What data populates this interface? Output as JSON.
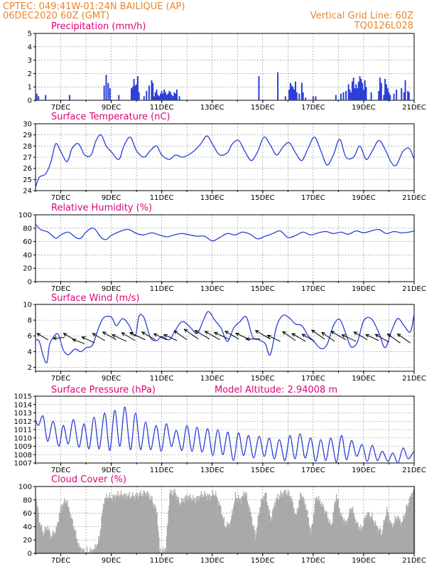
{
  "header": {
    "line1": "CPTEC:   049:41W-01:24N   BAILIQUE (AP)",
    "line2": "06DEC2020 60Z (GMT)",
    "grid_note": "Vertical Grid Line: 60Z",
    "code": "TQ0126L028",
    "model_altitude": "Model Altitude: 2.94008 m"
  },
  "colors": {
    "header": "#e8862a",
    "title": "#e0007a",
    "line": "#2a3fd6",
    "cloud": "#a9a9a9",
    "wind_arrow": "#000000"
  },
  "chart_data": [
    {
      "id": "precip",
      "type": "bar",
      "title": "Precipitation (mm/h)",
      "x_range": [
        6.0,
        21.0
      ],
      "ylim": [
        0,
        5
      ],
      "y_ticks": [
        0,
        1,
        2,
        3,
        4,
        5
      ],
      "x_tick_labels": [
        "7DEC",
        "9DEC",
        "11DEC",
        "13DEC",
        "15DEC",
        "17DEC",
        "19DEC",
        "21DEC"
      ],
      "x": [
        6.05,
        6.12,
        6.4,
        7.35,
        8.72,
        8.8,
        8.88,
        8.95,
        9.3,
        9.8,
        9.85,
        9.9,
        9.95,
        10.0,
        10.05,
        10.1,
        10.3,
        10.4,
        10.5,
        10.6,
        10.65,
        10.7,
        10.75,
        10.8,
        10.85,
        10.9,
        10.95,
        11.0,
        11.05,
        11.1,
        11.15,
        11.2,
        11.25,
        11.3,
        11.35,
        11.4,
        11.45,
        11.5,
        11.55,
        11.6,
        11.7,
        14.85,
        15.6,
        15.9,
        16.05,
        16.1,
        16.15,
        16.2,
        16.25,
        16.3,
        16.35,
        16.45,
        16.55,
        16.6,
        16.7,
        17.0,
        17.1,
        17.9,
        18.1,
        18.2,
        18.3,
        18.4,
        18.45,
        18.5,
        18.55,
        18.6,
        18.65,
        18.7,
        18.75,
        18.8,
        18.85,
        18.9,
        18.95,
        19.0,
        19.05,
        19.1,
        19.3,
        19.6,
        19.65,
        19.7,
        19.8,
        19.85,
        19.9,
        19.95,
        20.0,
        20.05,
        20.2,
        20.3,
        20.5,
        20.6,
        20.65,
        20.75,
        20.8
      ],
      "values": [
        0.5,
        0.3,
        0.4,
        0.4,
        1.1,
        1.9,
        1.3,
        0.9,
        0.4,
        0.9,
        1.0,
        1.6,
        1.1,
        1.2,
        1.8,
        0.6,
        0.3,
        0.7,
        1.1,
        1.5,
        1.3,
        0.3,
        0.6,
        0.8,
        0.4,
        0.3,
        0.5,
        0.7,
        0.5,
        0.8,
        0.6,
        0.4,
        0.5,
        0.7,
        0.6,
        0.4,
        0.3,
        0.6,
        0.5,
        0.8,
        0.3,
        1.8,
        2.1,
        0.3,
        0.8,
        1.3,
        1.1,
        1.0,
        0.8,
        1.4,
        0.6,
        0.5,
        1.3,
        0.6,
        0.2,
        0.3,
        0.3,
        0.4,
        0.5,
        0.6,
        0.7,
        1.2,
        0.8,
        0.6,
        1.4,
        1.7,
        0.9,
        1.2,
        0.9,
        1.4,
        1.8,
        1.6,
        1.3,
        0.8,
        1.5,
        1.0,
        0.6,
        0.7,
        1.7,
        1.3,
        0.4,
        1.6,
        1.2,
        0.9,
        0.6,
        0.4,
        0.5,
        0.8,
        0.9,
        0.6,
        1.5,
        0.7,
        0.6
      ]
    },
    {
      "id": "temp",
      "type": "line",
      "title": "Surface Temperature (nC)",
      "x_range": [
        6.0,
        21.0
      ],
      "ylim": [
        24,
        30
      ],
      "y_ticks": [
        24,
        25,
        26,
        27,
        28,
        29,
        30
      ],
      "x_tick_labels": [
        "7DEC",
        "9DEC",
        "11DEC",
        "13DEC",
        "15DEC",
        "17DEC",
        "19DEC",
        "21DEC"
      ],
      "x": [
        6.0,
        6.15,
        6.4,
        6.6,
        6.8,
        7.0,
        7.25,
        7.45,
        7.7,
        7.95,
        8.2,
        8.4,
        8.6,
        8.8,
        9.0,
        9.3,
        9.5,
        9.75,
        10.0,
        10.3,
        10.55,
        10.8,
        11.0,
        11.3,
        11.55,
        11.8,
        12.05,
        12.3,
        12.55,
        12.8,
        13.05,
        13.3,
        13.6,
        13.8,
        14.05,
        14.3,
        14.55,
        14.8,
        15.05,
        15.3,
        15.55,
        15.8,
        16.05,
        16.3,
        16.55,
        16.8,
        17.05,
        17.3,
        17.55,
        17.8,
        18.05,
        18.3,
        18.6,
        18.85,
        19.1,
        19.35,
        19.6,
        19.85,
        20.1,
        20.3,
        20.55,
        20.8,
        21.0
      ],
      "values": [
        24.3,
        25.2,
        25.5,
        26.5,
        28.2,
        27.5,
        26.6,
        27.8,
        28.2,
        27.2,
        27.2,
        28.5,
        29.0,
        28.0,
        27.5,
        26.8,
        28.0,
        28.8,
        27.6,
        27.0,
        27.6,
        28.0,
        27.2,
        26.8,
        27.2,
        27.0,
        27.2,
        27.6,
        28.2,
        28.9,
        28.0,
        27.2,
        27.4,
        28.2,
        28.5,
        27.5,
        26.7,
        27.5,
        28.8,
        28.1,
        27.2,
        27.9,
        28.3,
        27.4,
        26.7,
        27.8,
        28.8,
        27.6,
        26.3,
        27.2,
        28.6,
        27.0,
        27.0,
        28.0,
        26.8,
        27.6,
        28.5,
        27.7,
        26.5,
        26.3,
        27.5,
        27.8,
        26.8
      ]
    },
    {
      "id": "rh",
      "type": "line",
      "title": "Relative Humidity (%)",
      "x_range": [
        6.0,
        21.0
      ],
      "ylim": [
        0,
        100
      ],
      "y_ticks": [
        0,
        20,
        40,
        60,
        80,
        100
      ],
      "x_tick_labels": [
        "7DEC",
        "9DEC",
        "11DEC",
        "13DEC",
        "15DEC",
        "17DEC",
        "19DEC",
        "21DEC"
      ],
      "x": [
        6.0,
        6.2,
        6.5,
        6.8,
        7.0,
        7.3,
        7.6,
        7.8,
        8.0,
        8.3,
        8.6,
        8.8,
        9.0,
        9.4,
        9.7,
        10.0,
        10.3,
        10.6,
        10.9,
        11.2,
        11.5,
        11.8,
        12.1,
        12.4,
        12.7,
        13.0,
        13.3,
        13.6,
        13.9,
        14.2,
        14.5,
        14.8,
        15.1,
        15.4,
        15.7,
        16.0,
        16.3,
        16.6,
        16.9,
        17.2,
        17.5,
        17.8,
        18.1,
        18.4,
        18.7,
        19.0,
        19.3,
        19.6,
        19.9,
        20.2,
        20.5,
        20.8,
        21.0
      ],
      "values": [
        86,
        78,
        74,
        65,
        70,
        74,
        66,
        65,
        74,
        80,
        66,
        63,
        69,
        76,
        78,
        72,
        70,
        73,
        70,
        67,
        70,
        72,
        70,
        68,
        68,
        61,
        66,
        72,
        70,
        74,
        71,
        64,
        68,
        72,
        76,
        66,
        69,
        74,
        70,
        73,
        75,
        72,
        74,
        71,
        76,
        73,
        76,
        78,
        72,
        75,
        73,
        74,
        76
      ]
    },
    {
      "id": "wind",
      "type": "line",
      "title": "Surface Wind (m/s)",
      "x_range": [
        6.0,
        21.0
      ],
      "ylim": [
        1.5,
        10
      ],
      "y_ticks": [
        2,
        4,
        6,
        8,
        10
      ],
      "x_tick_labels": [
        "7DEC",
        "9DEC",
        "11DEC",
        "13DEC",
        "15DEC",
        "17DEC",
        "19DEC",
        "21DEC"
      ],
      "x": [
        6.0,
        6.15,
        6.3,
        6.45,
        6.55,
        6.7,
        6.9,
        7.1,
        7.3,
        7.55,
        7.8,
        8.0,
        8.25,
        8.5,
        8.7,
        9.0,
        9.2,
        9.45,
        9.7,
        9.95,
        10.1,
        10.3,
        10.55,
        10.8,
        11.0,
        11.3,
        11.5,
        11.8,
        12.1,
        12.4,
        12.65,
        12.85,
        13.1,
        13.35,
        13.6,
        13.85,
        14.1,
        14.35,
        14.6,
        14.85,
        15.1,
        15.3,
        15.55,
        15.8,
        16.05,
        16.3,
        16.55,
        16.8,
        17.0,
        17.3,
        17.55,
        17.8,
        18.05,
        18.3,
        18.5,
        18.75,
        19.0,
        19.3,
        19.6,
        19.85,
        20.1,
        20.35,
        20.6,
        20.85,
        21.0
      ],
      "values": [
        5.5,
        5.3,
        3.5,
        2.6,
        4.8,
        5.8,
        6.2,
        4.2,
        3.6,
        4.3,
        4.0,
        4.5,
        4.8,
        7.0,
        8.3,
        8.4,
        7.3,
        8.2,
        7.4,
        6.0,
        8.5,
        8.3,
        5.8,
        5.4,
        5.9,
        5.5,
        6.5,
        7.8,
        7.2,
        6.3,
        8.0,
        9.1,
        8.0,
        7.0,
        5.3,
        7.0,
        7.8,
        8.4,
        5.9,
        5.5,
        5.0,
        3.6,
        7.2,
        8.6,
        8.3,
        7.5,
        7.3,
        6.0,
        5.4,
        4.4,
        4.9,
        7.3,
        8.1,
        6.2,
        4.6,
        5.2,
        7.9,
        8.2,
        6.4,
        4.5,
        6.6,
        8.2,
        7.3,
        6.5,
        8.8
      ]
    },
    {
      "id": "pressure",
      "type": "line",
      "title": "Surface Pressure (hPa)",
      "x_range": [
        6.0,
        21.0
      ],
      "ylim": [
        1007,
        1015
      ],
      "y_ticks": [
        1007,
        1008,
        1009,
        1010,
        1011,
        1012,
        1013,
        1014,
        1015
      ],
      "x_tick_labels": [
        "7DEC",
        "9DEC",
        "11DEC",
        "13DEC",
        "15DEC",
        "17DEC",
        "19DEC",
        "21DEC"
      ],
      "x": [
        6.0,
        6.12,
        6.3,
        6.48,
        6.7,
        6.92,
        7.1,
        7.3,
        7.5,
        7.72,
        7.92,
        8.12,
        8.32,
        8.52,
        8.74,
        8.94,
        9.14,
        9.34,
        9.54,
        9.76,
        9.96,
        10.16,
        10.36,
        10.56,
        10.78,
        10.98,
        11.18,
        11.38,
        11.58,
        11.8,
        12.0,
        12.2,
        12.4,
        12.6,
        12.82,
        13.02,
        13.22,
        13.42,
        13.62,
        13.84,
        14.04,
        14.24,
        14.44,
        14.64,
        14.86,
        15.06,
        15.26,
        15.46,
        15.66,
        15.88,
        16.08,
        16.28,
        16.48,
        16.68,
        16.9,
        17.1,
        17.3,
        17.5,
        17.7,
        17.92,
        18.12,
        18.32,
        18.52,
        18.72,
        18.94,
        19.14,
        19.34,
        19.54,
        19.74,
        19.96,
        20.16,
        20.36,
        20.56,
        20.76,
        20.98
      ],
      "values": [
        1012.2,
        1011.5,
        1012.6,
        1009.6,
        1012.0,
        1009.0,
        1011.5,
        1009.3,
        1012.2,
        1008.9,
        1011.7,
        1008.7,
        1012.5,
        1008.7,
        1013.0,
        1008.5,
        1013.3,
        1009.0,
        1013.7,
        1008.6,
        1013.0,
        1008.6,
        1011.9,
        1008.6,
        1011.5,
        1008.4,
        1011.7,
        1009.0,
        1010.9,
        1008.5,
        1011.5,
        1008.4,
        1011.3,
        1008.3,
        1011.1,
        1007.9,
        1011.0,
        1008.0,
        1010.7,
        1007.3,
        1010.6,
        1007.9,
        1010.3,
        1007.6,
        1010.2,
        1007.8,
        1010.0,
        1007.5,
        1009.8,
        1007.3,
        1010.3,
        1007.5,
        1010.5,
        1007.6,
        1010.0,
        1007.2,
        1009.8,
        1007.3,
        1010.0,
        1007.1,
        1010.3,
        1007.4,
        1009.7,
        1007.8,
        1009.2,
        1007.2,
        1009.1,
        1007.3,
        1008.4,
        1007.2,
        1008.2,
        1007.0,
        1008.8,
        1007.5,
        1008.4
      ]
    },
    {
      "id": "cloud",
      "type": "area",
      "title": "Cloud Cover (%)",
      "x_range": [
        6.0,
        21.0
      ],
      "ylim": [
        0,
        100
      ],
      "y_ticks": [
        0,
        20,
        40,
        60,
        80,
        100
      ],
      "x_tick_labels": [
        "7DEC",
        "9DEC",
        "11DEC",
        "13DEC",
        "15DEC",
        "17DEC",
        "19DEC",
        "21DEC"
      ],
      "x": [
        6.0,
        6.15,
        6.3,
        6.45,
        6.6,
        6.8,
        7.0,
        7.2,
        7.35,
        7.5,
        7.7,
        7.9,
        8.1,
        8.3,
        8.5,
        8.7,
        8.85,
        9.0,
        9.3,
        9.6,
        9.9,
        10.1,
        10.4,
        10.6,
        10.8,
        10.9,
        11.0,
        11.15,
        11.3,
        11.5,
        11.7,
        12.0,
        12.3,
        12.6,
        12.9,
        13.1,
        13.3,
        13.5,
        13.7,
        13.9,
        14.1,
        14.3,
        14.5,
        14.7,
        14.9,
        15.1,
        15.3,
        15.5,
        15.7,
        15.9,
        16.1,
        16.3,
        16.5,
        16.7,
        16.9,
        17.1,
        17.3,
        17.5,
        17.7,
        17.9,
        18.1,
        18.3,
        18.5,
        18.7,
        18.9,
        19.1,
        19.3,
        19.5,
        19.7,
        19.9,
        20.1,
        20.3,
        20.5,
        20.7,
        20.9,
        21.0
      ],
      "values": [
        85,
        45,
        30,
        40,
        25,
        35,
        70,
        80,
        60,
        40,
        10,
        3,
        3,
        5,
        20,
        80,
        85,
        83,
        88,
        86,
        85,
        88,
        90,
        80,
        60,
        5,
        2,
        8,
        90,
        92,
        75,
        85,
        80,
        88,
        85,
        90,
        70,
        40,
        45,
        85,
        80,
        92,
        60,
        25,
        75,
        90,
        50,
        80,
        88,
        92,
        85,
        55,
        90,
        70,
        30,
        85,
        75,
        60,
        40,
        88,
        55,
        45,
        70,
        45,
        35,
        60,
        55,
        40,
        30,
        65,
        40,
        55,
        45,
        70,
        90,
        95
      ]
    },
    {
      "id": "wind_vectors",
      "type": "scatter",
      "title": "",
      "x": [
        6.5,
        7.15,
        7.55,
        7.95,
        8.35,
        8.75,
        9.2,
        9.6,
        9.95,
        10.35,
        10.75,
        11.2,
        11.6,
        12.0,
        12.45,
        12.9,
        13.3,
        13.65,
        14.05,
        14.5,
        14.9,
        15.3,
        15.7,
        16.3,
        16.7,
        17.05,
        17.45,
        17.85,
        18.3,
        18.7,
        19.15,
        19.6,
        20.0,
        20.45,
        20.85
      ],
      "y": [
        5.5,
        5.8,
        5.5,
        5.0,
        5.1,
        5.4,
        5.5,
        5.3,
        5.4,
        5.5,
        5.5,
        5.5,
        5.4,
        5.5,
        5.6,
        5.6,
        5.5,
        5.6,
        5.6,
        5.5,
        5.6,
        5.6,
        5.3,
        5.4,
        5.3,
        5.3,
        5.6,
        5.3,
        5.5,
        5.3,
        5.5,
        5.4,
        5.2,
        5.1,
        5.1
      ],
      "dir_deg": [
        210,
        175,
        210,
        200,
        205,
        210,
        210,
        205,
        210,
        205,
        210,
        205,
        205,
        215,
        215,
        210,
        210,
        205,
        210,
        205,
        180,
        210,
        205,
        215,
        210,
        210,
        215,
        215,
        210,
        205,
        210,
        205,
        210,
        215,
        215
      ],
      "speed": [
        0.9,
        0.8,
        0.9,
        0.9,
        1.0,
        1.0,
        1.1,
        1.1,
        1.1,
        1.2,
        1.1,
        1.0,
        1.0,
        1.1,
        1.2,
        1.2,
        1.2,
        1.1,
        1.1,
        1.1,
        1.0,
        1.2,
        1.0,
        1.1,
        1.1,
        1.0,
        1.1,
        1.1,
        1.2,
        1.1,
        1.1,
        1.0,
        1.1,
        1.1,
        1.1
      ]
    }
  ]
}
